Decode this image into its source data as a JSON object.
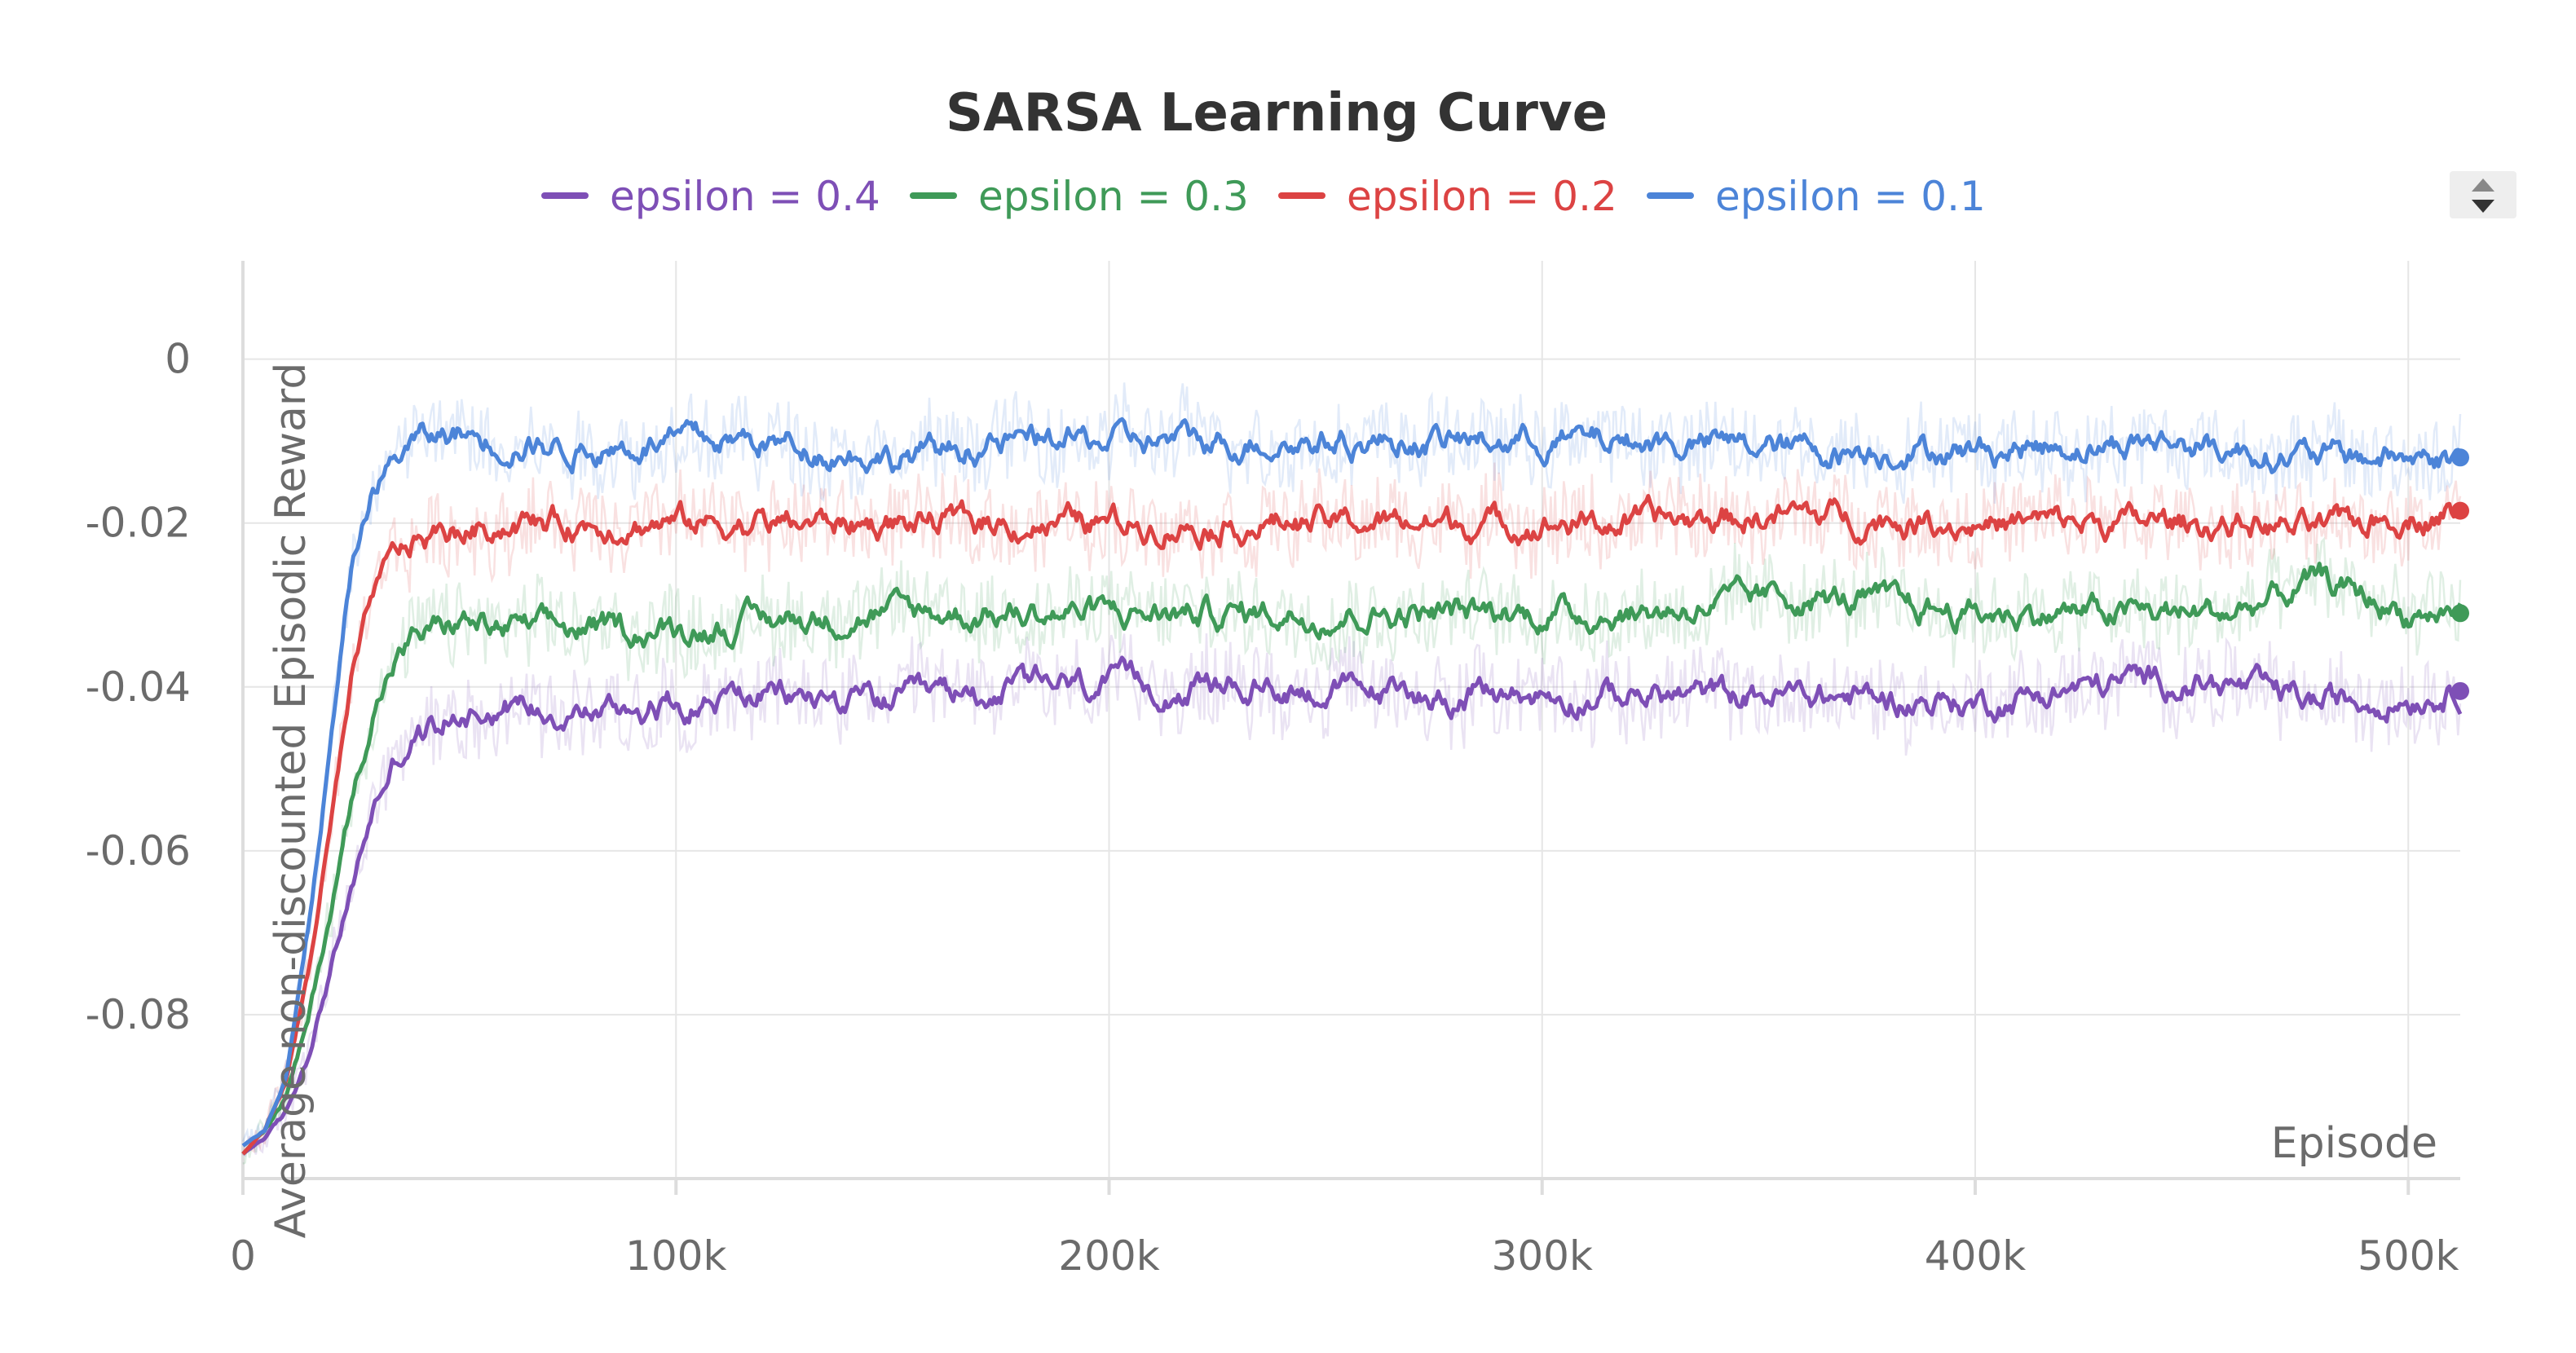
{
  "chart_data": {
    "type": "line",
    "title": "SARSA Learning Curve",
    "xlabel": "Episode",
    "ylabel": "Average non-discounted Episodic Reward",
    "xlim": [
      0,
      512000
    ],
    "ylim": [
      -0.1,
      0.012
    ],
    "xticks": [
      0,
      100000,
      200000,
      300000,
      400000,
      500000
    ],
    "xtick_labels": [
      "0",
      "100k",
      "200k",
      "300k",
      "400k",
      "500k"
    ],
    "yticks": [
      0,
      -0.02,
      -0.04,
      -0.06,
      -0.08
    ],
    "ytick_labels": [
      "0",
      "-0.02",
      "-0.04",
      "-0.06",
      "-0.08"
    ],
    "grid": true,
    "legend_position": "top",
    "series": [
      {
        "name": "epsilon = 0.4",
        "color": "#7e4fb6",
        "x": [
          0,
          5000,
          10000,
          15000,
          20000,
          25000,
          30000,
          35000,
          40000,
          50000,
          60000,
          80000,
          100000,
          120000,
          150000,
          180000,
          200000,
          240000,
          280000,
          320000,
          360000,
          400000,
          440000,
          460000,
          480000,
          500000,
          512000
        ],
        "y": [
          -0.097,
          -0.095,
          -0.092,
          -0.085,
          -0.075,
          -0.065,
          -0.055,
          -0.049,
          -0.046,
          -0.043,
          -0.042,
          -0.043,
          -0.042,
          -0.041,
          -0.042,
          -0.04,
          -0.04,
          -0.04,
          -0.041,
          -0.041,
          -0.041,
          -0.042,
          -0.039,
          -0.04,
          -0.042,
          -0.041,
          -0.0405
        ]
      },
      {
        "name": "epsilon = 0.3",
        "color": "#3f9a58",
        "x": [
          0,
          5000,
          10000,
          15000,
          20000,
          25000,
          30000,
          35000,
          40000,
          50000,
          60000,
          80000,
          100000,
          120000,
          150000,
          180000,
          200000,
          240000,
          280000,
          320000,
          360000,
          400000,
          440000,
          460000,
          480000,
          500000,
          512000
        ],
        "y": [
          -0.097,
          -0.094,
          -0.09,
          -0.081,
          -0.068,
          -0.054,
          -0.043,
          -0.037,
          -0.034,
          -0.032,
          -0.033,
          -0.033,
          -0.033,
          -0.032,
          -0.031,
          -0.031,
          -0.031,
          -0.031,
          -0.031,
          -0.031,
          -0.029,
          -0.031,
          -0.031,
          -0.031,
          -0.027,
          -0.031,
          -0.031
        ]
      },
      {
        "name": "epsilon = 0.2",
        "color": "#dc4343",
        "x": [
          0,
          5000,
          10000,
          15000,
          20000,
          25000,
          30000,
          35000,
          40000,
          50000,
          60000,
          80000,
          100000,
          120000,
          150000,
          180000,
          200000,
          240000,
          280000,
          320000,
          360000,
          400000,
          440000,
          460000,
          480000,
          500000,
          512000
        ],
        "y": [
          -0.097,
          -0.094,
          -0.088,
          -0.075,
          -0.058,
          -0.04,
          -0.029,
          -0.024,
          -0.022,
          -0.021,
          -0.02,
          -0.02,
          -0.02,
          -0.02,
          -0.02,
          -0.02,
          -0.02,
          -0.02,
          -0.02,
          -0.02,
          -0.019,
          -0.02,
          -0.02,
          -0.02,
          -0.021,
          -0.019,
          -0.0185
        ]
      },
      {
        "name": "epsilon = 0.1",
        "color": "#4c84d8",
        "x": [
          0,
          5000,
          10000,
          15000,
          20000,
          25000,
          30000,
          35000,
          40000,
          50000,
          60000,
          80000,
          100000,
          120000,
          150000,
          180000,
          200000,
          240000,
          280000,
          320000,
          360000,
          400000,
          440000,
          460000,
          480000,
          500000,
          512000
        ],
        "y": [
          -0.096,
          -0.094,
          -0.087,
          -0.07,
          -0.048,
          -0.026,
          -0.016,
          -0.012,
          -0.01,
          -0.009,
          -0.01,
          -0.011,
          -0.01,
          -0.01,
          -0.012,
          -0.01,
          -0.01,
          -0.01,
          -0.01,
          -0.01,
          -0.011,
          -0.011,
          -0.01,
          -0.011,
          -0.012,
          -0.012,
          -0.012
        ]
      }
    ]
  }
}
